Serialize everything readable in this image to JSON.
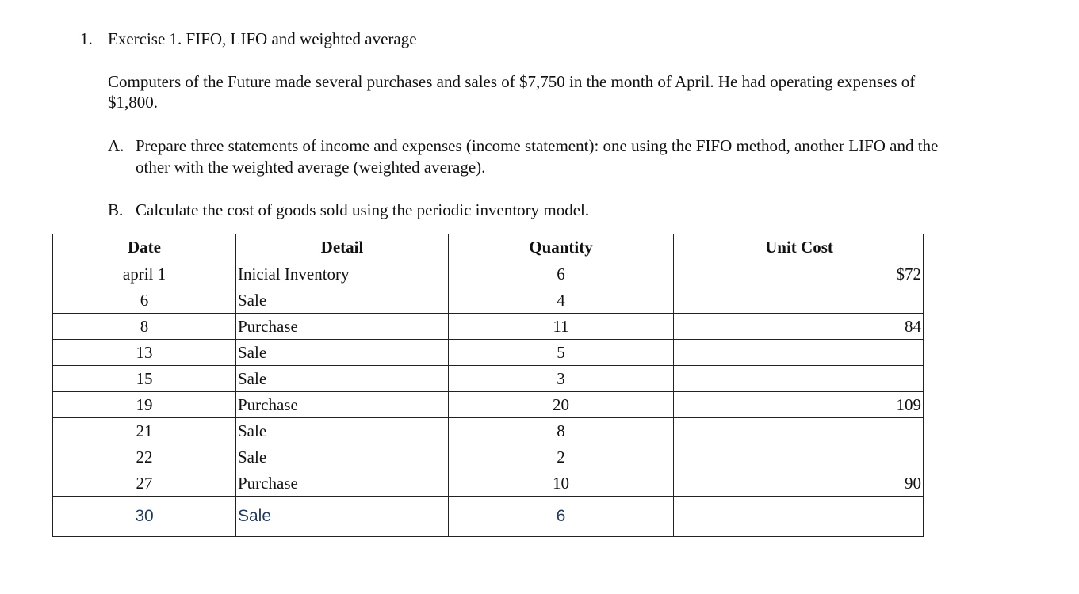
{
  "exercise": {
    "number": "1.",
    "title": "Exercise 1. FIFO, LIFO and weighted average"
  },
  "intro": {
    "line1": "Computers of the Future made several purchases and sales of $7,750 in the month of April. He had operating expenses of",
    "line2": "$1,800."
  },
  "tasks": [
    {
      "marker": "A.",
      "line1": "Prepare three statements of income and expenses (income statement): one using the FIFO method, another LIFO and the",
      "line2": "other with the weighted average (weighted average)."
    },
    {
      "marker": "B.",
      "line1": "Calculate the cost of goods sold using the periodic inventory model."
    }
  ],
  "table": {
    "headers": [
      "Date",
      "Detail",
      "Quantity",
      "Unit Cost"
    ],
    "rows": [
      {
        "date": "april 1",
        "detail": "Inicial Inventory",
        "quantity": "6",
        "unit_cost": "$72"
      },
      {
        "date": "6",
        "detail": "Sale",
        "quantity": "4",
        "unit_cost": ""
      },
      {
        "date": "8",
        "detail": "Purchase",
        "quantity": "11",
        "unit_cost": "84"
      },
      {
        "date": "13",
        "detail": "Sale",
        "quantity": "5",
        "unit_cost": ""
      },
      {
        "date": "15",
        "detail": "Sale",
        "quantity": "3",
        "unit_cost": ""
      },
      {
        "date": "19",
        "detail": "Purchase",
        "quantity": "20",
        "unit_cost": "109"
      },
      {
        "date": "21",
        "detail": "Sale",
        "quantity": "8",
        "unit_cost": ""
      },
      {
        "date": "22",
        "detail": "Sale",
        "quantity": "2",
        "unit_cost": ""
      },
      {
        "date": "27",
        "detail": "Purchase",
        "quantity": "10",
        "unit_cost": "90"
      },
      {
        "date": "30",
        "detail": "Sale",
        "quantity": "6",
        "unit_cost": ""
      }
    ]
  }
}
